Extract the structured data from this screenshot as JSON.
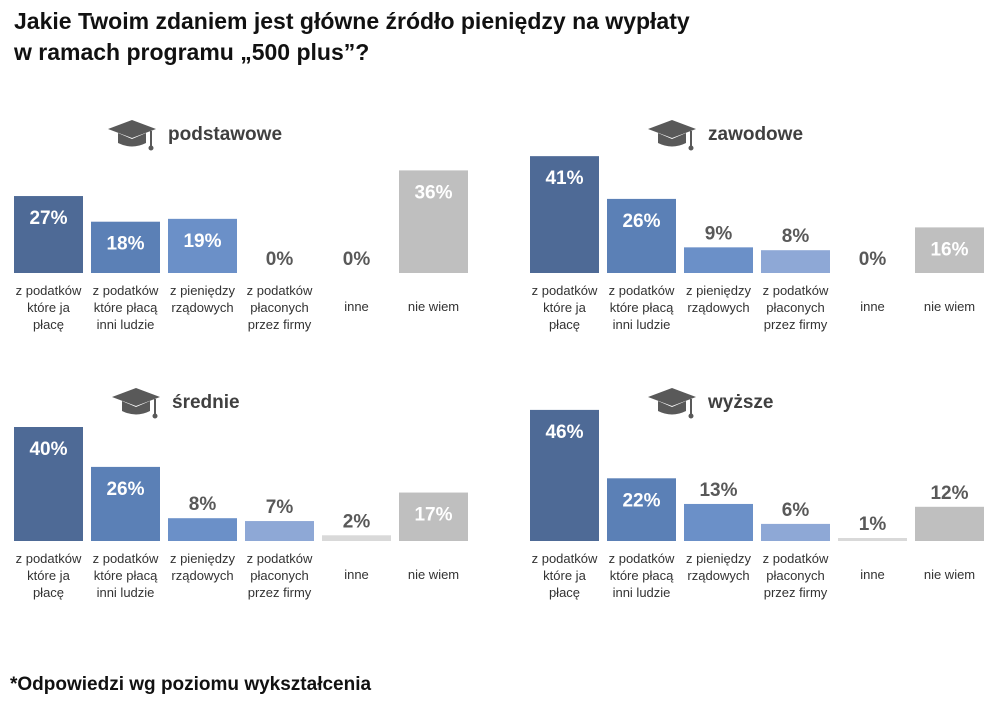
{
  "title_line1": "Jakie Twoim zdaniem jest główne źródło pieniędzy na wypłaty",
  "title_line2": "w ramach programu „500 plus”?",
  "footnote": "*Odpowiedzi wg poziomu wykształcenia",
  "colors": {
    "c1": "#4e6a96",
    "c2": "#5b80b6",
    "c3": "#6b90c8",
    "c4": "#8ea8d6",
    "c5": "#d9d9d9",
    "c6": "#bfbfbf",
    "label_on_bar": "#ffffff",
    "label_above": "#595959"
  },
  "chart_data": [
    {
      "type": "bar",
      "title": "podstawowe",
      "categories": [
        "z podatków\nktóre ja\npłacę",
        "z podatków\nktóre płacą\ninni ludzie",
        "z pieniędzy\nrządowych",
        "z podatków\npłaconych\nprzez firmy",
        "inne",
        "nie wiem"
      ],
      "values": [
        27,
        18,
        19,
        0,
        0,
        36
      ],
      "value_labels": [
        "27%",
        "18%",
        "19%",
        "0%",
        "0%",
        "36%"
      ]
    },
    {
      "type": "bar",
      "title": "zawodowe",
      "categories": [
        "z podatków\nktóre ja\npłacę",
        "z podatków\nktóre płacą\ninni ludzie",
        "z pieniędzy\nrządowych",
        "z podatków\npłaconych\nprzez firmy",
        "inne",
        "nie wiem"
      ],
      "values": [
        41,
        26,
        9,
        8,
        0,
        16
      ],
      "value_labels": [
        "41%",
        "26%",
        "9%",
        "8%",
        "0%",
        "16%"
      ]
    },
    {
      "type": "bar",
      "title": "średnie",
      "categories": [
        "z podatków\nktóre ja\npłacę",
        "z podatków\nktóre płacą\ninni ludzie",
        "z pieniędzy\nrządowych",
        "z podatków\npłaconych\nprzez firmy",
        "inne",
        "nie wiem"
      ],
      "values": [
        40,
        26,
        8,
        7,
        2,
        17
      ],
      "value_labels": [
        "40%",
        "26%",
        "8%",
        "7%",
        "2%",
        "17%"
      ]
    },
    {
      "type": "bar",
      "title": "wyższe",
      "categories": [
        "z podatków\nktóre ja\npłacę",
        "z podatków\nktóre płacą\ninni ludzie",
        "z pieniędzy\nrządowych",
        "z podatków\npłaconych\nprzez firmy",
        "inne",
        "nie wiem"
      ],
      "values": [
        46,
        22,
        13,
        6,
        1,
        12
      ],
      "value_labels": [
        "46%",
        "22%",
        "13%",
        "6%",
        "1%",
        "12%"
      ]
    }
  ]
}
